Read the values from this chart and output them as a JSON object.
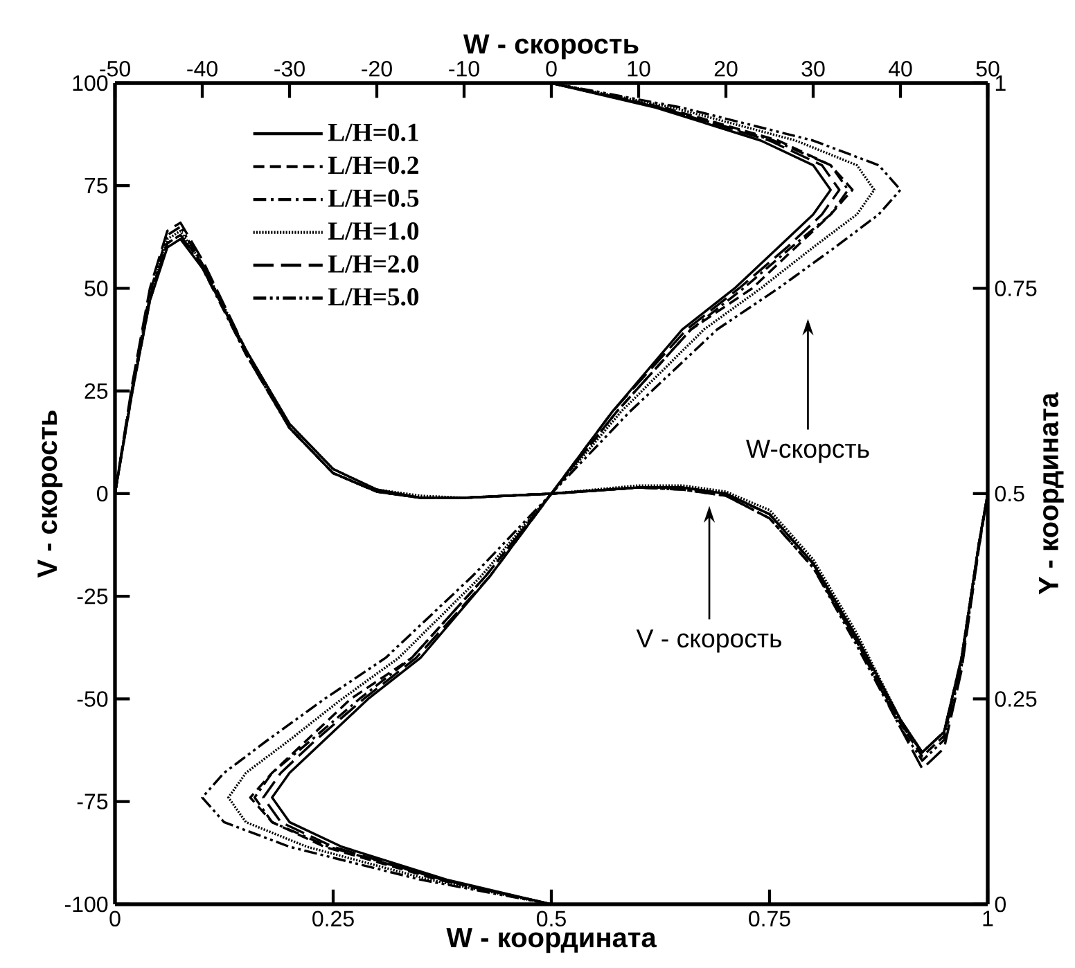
{
  "chart_data": [
    {
      "type": "line",
      "xlabel": "W - координата",
      "ylabel": "V - скорость",
      "xlim": [
        0,
        1
      ],
      "xticks": [
        0,
        0.25,
        0.5,
        0.75,
        1
      ],
      "ylim": [
        -100,
        100
      ],
      "yticks": [
        -100,
        -75,
        -50,
        -25,
        0,
        25,
        50,
        75,
        100
      ],
      "legend": "top left",
      "marker": "none",
      "x": [
        0,
        0.02,
        0.04,
        0.06,
        0.075,
        0.1,
        0.15,
        0.2,
        0.25,
        0.3,
        0.35,
        0.4,
        0.5,
        0.6,
        0.65,
        0.7,
        0.75,
        0.8,
        0.85,
        0.9,
        0.925,
        0.95,
        0.97,
        0.99,
        1
      ],
      "series": [
        {
          "name": "L/H=0.1",
          "color": "#000000",
          "line_style": "solid",
          "values": [
            0,
            25,
            47,
            60,
            62,
            55,
            35,
            17,
            6,
            1,
            -1,
            -1,
            0,
            1.5,
            1.5,
            0,
            -5,
            -17,
            -35,
            -55,
            -63,
            -58,
            -40,
            -12,
            0
          ]
        },
        {
          "name": "L/H=0.2",
          "color": "#000000",
          "line_style": "dashed",
          "values": [
            0,
            26,
            48,
            61,
            63,
            56,
            34,
            16,
            5,
            0.5,
            -1,
            -1,
            0,
            1.5,
            1.5,
            0,
            -5,
            -17,
            -36,
            -56,
            -64,
            -59,
            -41,
            -12,
            0
          ]
        },
        {
          "name": "L/H=0.5",
          "color": "#000000",
          "line_style": "dashdot",
          "values": [
            0,
            25,
            47,
            61,
            63,
            55,
            34,
            16,
            5,
            0.5,
            -1,
            -1,
            0,
            1.5,
            1,
            -0.5,
            -6,
            -18,
            -36,
            -56,
            -63,
            -58,
            -40,
            -12,
            0
          ]
        },
        {
          "name": "L/H=1.0",
          "color": "#000000",
          "line_style": "dotted",
          "values": [
            0,
            26,
            48,
            62,
            64,
            56,
            35,
            17,
            6,
            1,
            -0.5,
            -1,
            0,
            2,
            2,
            0.5,
            -4,
            -16,
            -34,
            -55,
            -63,
            -58,
            -40,
            -12,
            0
          ]
        },
        {
          "name": "L/H=2.0",
          "color": "#000000",
          "line_style": "longdash",
          "values": [
            0,
            27,
            50,
            64,
            66,
            57,
            35,
            16,
            5,
            0.5,
            -1,
            -1,
            0,
            1.5,
            1.5,
            0,
            -5,
            -17,
            -36,
            -57,
            -67,
            -62,
            -43,
            -13,
            0
          ]
        },
        {
          "name": "L/H=5.0",
          "color": "#000000",
          "line_style": "dashdotdot",
          "values": [
            0,
            26,
            49,
            63,
            65,
            56,
            34,
            16,
            5,
            0.5,
            -1,
            -1,
            0,
            1.5,
            1,
            -0.5,
            -6,
            -18,
            -37,
            -57,
            -65,
            -60,
            -42,
            -13,
            0
          ]
        }
      ],
      "annotations": [
        "V - скорость"
      ]
    },
    {
      "type": "line",
      "xlabel": "W - скорость",
      "ylabel": "Y - координата",
      "xlim": [
        -50,
        50
      ],
      "xticks": [
        -50,
        -40,
        -30,
        -20,
        -10,
        0,
        10,
        20,
        30,
        40,
        50
      ],
      "ylim": [
        0,
        1
      ],
      "yticks": [
        0,
        0.25,
        0.5,
        0.75,
        1
      ],
      "marker": "none",
      "series": [
        {
          "color": "#000000",
          "line_style": "solid",
          "x": [
            0,
            12,
            24,
            30,
            32,
            30,
            26,
            21,
            15,
            7,
            -7,
            -15,
            -21,
            -26,
            -30,
            -32,
            -30,
            -24,
            -12,
            0
          ],
          "values": [
            1,
            0.97,
            0.93,
            0.9,
            0.87,
            0.84,
            0.8,
            0.75,
            0.7,
            0.6,
            0.4,
            0.3,
            0.25,
            0.2,
            0.16,
            0.13,
            0.1,
            0.07,
            0.03,
            0
          ]
        },
        {
          "color": "#000000",
          "line_style": "dashed",
          "x": [
            0,
            13,
            26,
            32,
            34.5,
            32,
            28,
            23,
            16,
            7.5,
            -7.5,
            -16,
            -23,
            -28,
            -32,
            -34.5,
            -32,
            -26,
            -13,
            0
          ],
          "values": [
            1,
            0.97,
            0.93,
            0.9,
            0.87,
            0.84,
            0.8,
            0.75,
            0.7,
            0.6,
            0.4,
            0.3,
            0.25,
            0.2,
            0.16,
            0.13,
            0.1,
            0.07,
            0.03,
            0
          ]
        },
        {
          "color": "#000000",
          "line_style": "dashdot",
          "x": [
            0,
            12.5,
            25.5,
            32,
            34,
            32,
            27.5,
            22,
            16,
            7.5,
            -7.5,
            -16,
            -22,
            -27.5,
            -32,
            -34,
            -32,
            -25.5,
            -12.5,
            0
          ],
          "values": [
            1,
            0.97,
            0.93,
            0.9,
            0.87,
            0.84,
            0.8,
            0.75,
            0.7,
            0.6,
            0.4,
            0.3,
            0.25,
            0.2,
            0.16,
            0.13,
            0.1,
            0.07,
            0.03,
            0
          ]
        },
        {
          "color": "#000000",
          "line_style": "dotted",
          "x": [
            0,
            14,
            28,
            35,
            37,
            35,
            30,
            24,
            17.5,
            8,
            -8,
            -17.5,
            -24,
            -30,
            -35,
            -37,
            -35,
            -28,
            -14,
            0
          ],
          "values": [
            1,
            0.97,
            0.93,
            0.9,
            0.87,
            0.84,
            0.8,
            0.75,
            0.7,
            0.6,
            0.4,
            0.3,
            0.25,
            0.2,
            0.16,
            0.13,
            0.1,
            0.07,
            0.03,
            0
          ]
        },
        {
          "color": "#000000",
          "line_style": "longdash",
          "x": [
            0,
            12.5,
            25,
            31,
            33,
            31,
            27,
            21.5,
            15.5,
            7,
            -7,
            -15.5,
            -21.5,
            -27,
            -31,
            -33,
            -31,
            -25,
            -12.5,
            0
          ],
          "values": [
            1,
            0.97,
            0.93,
            0.9,
            0.87,
            0.84,
            0.8,
            0.75,
            0.7,
            0.6,
            0.4,
            0.3,
            0.25,
            0.2,
            0.16,
            0.13,
            0.1,
            0.07,
            0.03,
            0
          ]
        },
        {
          "color": "#000000",
          "line_style": "dashdotdot",
          "x": [
            0,
            15,
            30,
            37.5,
            40,
            37.5,
            32.5,
            26,
            19,
            9,
            -9,
            -19,
            -26,
            -32.5,
            -37.5,
            -40,
            -37.5,
            -30,
            -15,
            0
          ],
          "values": [
            1,
            0.97,
            0.93,
            0.9,
            0.87,
            0.84,
            0.8,
            0.75,
            0.7,
            0.6,
            0.4,
            0.3,
            0.25,
            0.2,
            0.16,
            0.13,
            0.1,
            0.07,
            0.03,
            0
          ]
        }
      ],
      "annotations": [
        "W-скорсть"
      ]
    }
  ]
}
